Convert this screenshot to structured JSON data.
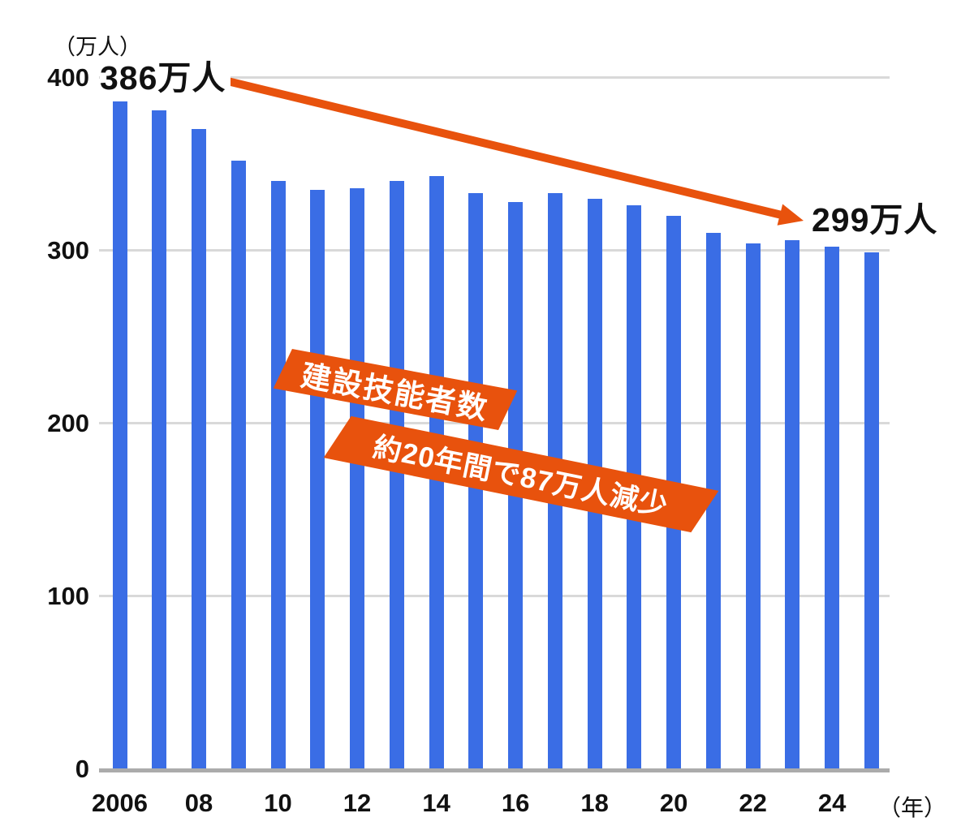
{
  "chart_data": {
    "type": "bar",
    "series_label": "建設技能者数",
    "y_axis_unit": "（万人）",
    "x_axis_unit": "（年）",
    "ylim": [
      0,
      400
    ],
    "grid": true,
    "y_ticks": [
      "400",
      "300",
      "200",
      "100",
      "0"
    ],
    "y_tick_values": [
      400,
      300,
      200,
      100,
      0
    ],
    "x_tick_labels": [
      "2006",
      "08",
      "10",
      "12",
      "14",
      "16",
      "18",
      "20",
      "22",
      "24"
    ],
    "categories": [
      "2006",
      "2007",
      "2008",
      "2009",
      "2010",
      "2011",
      "2012",
      "2013",
      "2014",
      "2015",
      "2016",
      "2017",
      "2018",
      "2019",
      "2020",
      "2021",
      "2022",
      "2023",
      "2024",
      "2025"
    ],
    "values": [
      386,
      381,
      370,
      352,
      340,
      335,
      336,
      340,
      343,
      333,
      328,
      333,
      330,
      326,
      320,
      310,
      304,
      306,
      302,
      299
    ],
    "annotations": {
      "start_label": "386万人",
      "end_label": "299万人",
      "banner_line1": "建設技能者数",
      "banner_line2": "約20年間で87万人減少"
    },
    "colors": {
      "bar": "#3A6DE5",
      "accent_orange": "#E8520D",
      "gridline": "#D9D9D9",
      "baseline": "#ABABAB",
      "text": "#111111"
    }
  }
}
